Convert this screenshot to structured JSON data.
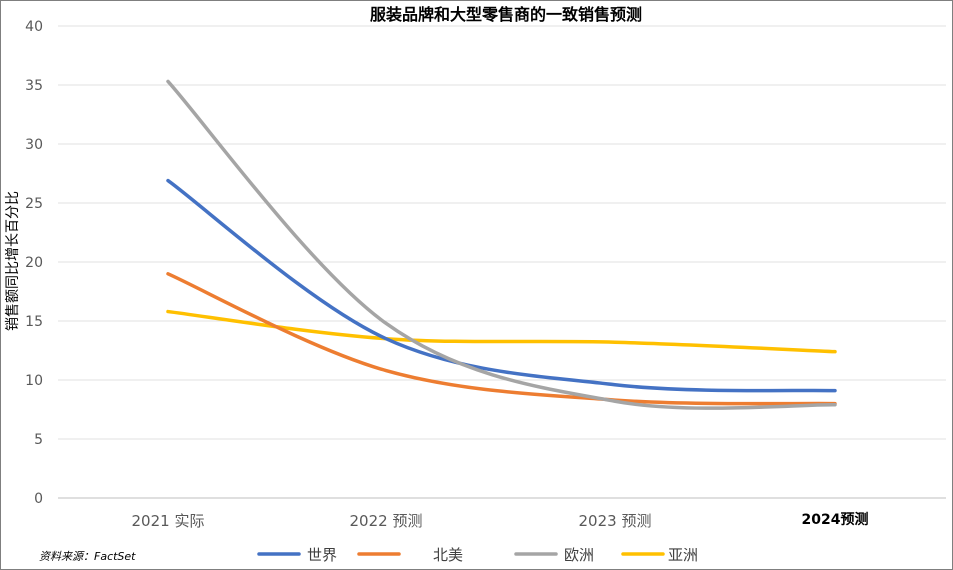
{
  "chart_data": {
    "type": "line",
    "title": "服装品牌和大型零售商的一致销售预测",
    "ylabel": "销售额同比增长百分比",
    "xlabel": "",
    "categories": [
      "2021 实际",
      "2022 预测",
      "2023 预测",
      "2024预测"
    ],
    "ylim": [
      0,
      40
    ],
    "yticks": [
      0,
      5,
      10,
      15,
      20,
      25,
      30,
      35,
      40
    ],
    "grid": true,
    "legend_position": "bottom",
    "series": [
      {
        "name": "世界",
        "color": "#4472c4",
        "values": [
          26.9,
          13.5,
          9.6,
          9.1
        ]
      },
      {
        "name": "北美",
        "color": "#ed7d31",
        "values": [
          19.0,
          10.8,
          8.3,
          8.0
        ]
      },
      {
        "name": "欧洲",
        "color": "#a5a5a5",
        "values": [
          35.3,
          14.8,
          8.2,
          7.9
        ]
      },
      {
        "name": "亚洲",
        "color": "#ffc000",
        "values": [
          15.8,
          13.5,
          13.2,
          12.4
        ]
      }
    ],
    "source": "资料来源：FactSet"
  }
}
